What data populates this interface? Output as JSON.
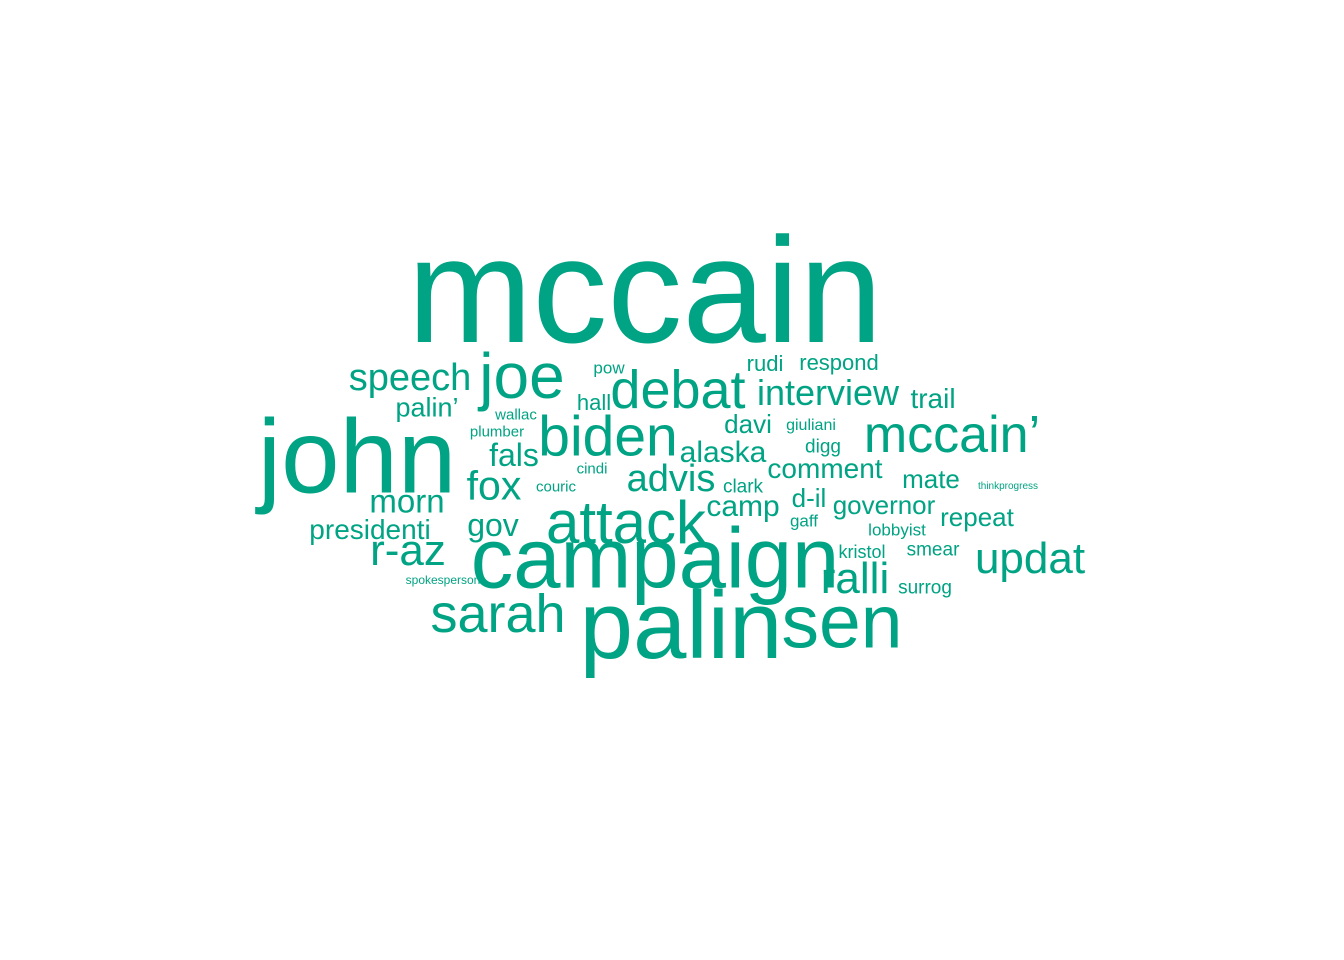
{
  "wordcloud": {
    "color": "#00A383",
    "words": [
      {
        "text": "mccain",
        "weight": 100
      },
      {
        "text": "john",
        "weight": 70
      },
      {
        "text": "palin",
        "weight": 64
      },
      {
        "text": "campaign",
        "weight": 57
      },
      {
        "text": "sen",
        "weight": 50
      },
      {
        "text": "joe",
        "weight": 43
      },
      {
        "text": "attack",
        "weight": 40
      },
      {
        "text": "biden",
        "weight": 38
      },
      {
        "text": "sarah",
        "weight": 36
      },
      {
        "text": "debat",
        "weight": 36
      },
      {
        "text": "mccain’",
        "weight": 35
      },
      {
        "text": "ralli",
        "weight": 30
      },
      {
        "text": "updat",
        "weight": 30
      },
      {
        "text": "r-az",
        "weight": 30
      },
      {
        "text": "fox",
        "weight": 28
      },
      {
        "text": "speech",
        "weight": 26
      },
      {
        "text": "advis",
        "weight": 26
      },
      {
        "text": "interview",
        "weight": 25
      },
      {
        "text": "morn",
        "weight": 23
      },
      {
        "text": "fals",
        "weight": 22
      },
      {
        "text": "gov",
        "weight": 22
      },
      {
        "text": "alaska",
        "weight": 21
      },
      {
        "text": "camp",
        "weight": 21
      },
      {
        "text": "palin’",
        "weight": 19
      },
      {
        "text": "presidenti",
        "weight": 21
      },
      {
        "text": "trail",
        "weight": 20
      },
      {
        "text": "comment",
        "weight": 20
      },
      {
        "text": "governor",
        "weight": 19
      },
      {
        "text": "repeat",
        "weight": 19
      },
      {
        "text": "mate",
        "weight": 18
      },
      {
        "text": "davi",
        "weight": 18
      },
      {
        "text": "d-il",
        "weight": 18
      },
      {
        "text": "respond",
        "weight": 16
      },
      {
        "text": "rudi",
        "weight": 16
      },
      {
        "text": "hall",
        "weight": 16
      },
      {
        "text": "clark",
        "weight": 14
      },
      {
        "text": "digg",
        "weight": 14
      },
      {
        "text": "smear",
        "weight": 14
      },
      {
        "text": "surrog",
        "weight": 14
      },
      {
        "text": "kristol",
        "weight": 13
      },
      {
        "text": "lobbyist",
        "weight": 13
      },
      {
        "text": "gaff",
        "weight": 13
      },
      {
        "text": "giuliani",
        "weight": 12
      },
      {
        "text": "pow",
        "weight": 12
      },
      {
        "text": "couric",
        "weight": 11
      },
      {
        "text": "cindi",
        "weight": 11
      },
      {
        "text": "wallac",
        "weight": 11
      },
      {
        "text": "plumber",
        "weight": 11
      },
      {
        "text": "spokesperson",
        "weight": 9
      },
      {
        "text": "thinkprogress",
        "weight": 7
      }
    ]
  }
}
